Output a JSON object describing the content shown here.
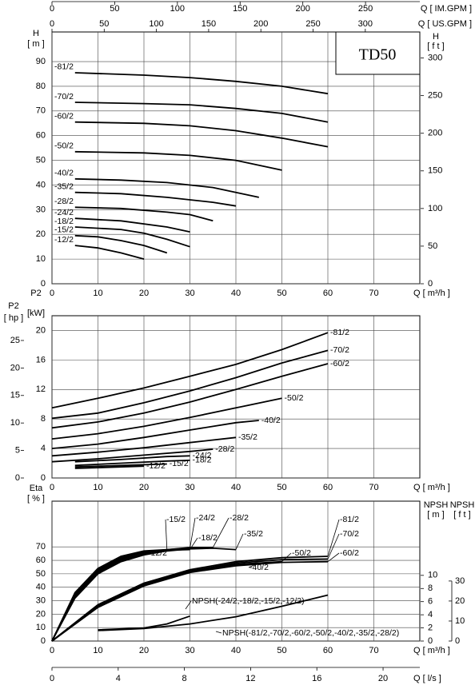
{
  "chart_data": [
    {
      "type": "line",
      "title": "TD50",
      "xlabel": "Q [ m³/h ]",
      "ylabel": "H",
      "yunit": "[ m ]",
      "y2label": "H",
      "y2unit": "[ f t ]",
      "xlim": [
        0,
        80
      ],
      "xticks": [
        0,
        10,
        20,
        30,
        40,
        50,
        60,
        70
      ],
      "ylim": [
        0,
        102
      ],
      "yticks": [
        0,
        10,
        20,
        30,
        40,
        50,
        60,
        70,
        80,
        90
      ],
      "y2lim": [
        0,
        334.6
      ],
      "y2ticks": [
        0,
        50,
        100,
        150,
        200,
        250,
        300
      ],
      "grid": true,
      "color": "#000000",
      "top_axes": [
        {
          "label": "Q [ IM.GPM ]",
          "lim": [
            0,
            293.3
          ],
          "ticks": [
            0,
            50,
            100,
            150,
            200,
            250
          ]
        },
        {
          "label": "Q [ US.GPM ]",
          "lim": [
            0,
            352.2
          ],
          "ticks": [
            0,
            50,
            100,
            150,
            200,
            250,
            300
          ]
        }
      ],
      "series": [
        {
          "name": "-81/2",
          "x": [
            5,
            20,
            30,
            40,
            50,
            60
          ],
          "values": [
            85.5,
            84.5,
            83.5,
            82,
            80,
            77
          ]
        },
        {
          "name": "-70/2",
          "x": [
            5,
            20,
            30,
            40,
            50,
            60
          ],
          "values": [
            73.5,
            73,
            72.5,
            71,
            69,
            65.5
          ]
        },
        {
          "name": "-60/2",
          "x": [
            5,
            20,
            30,
            40,
            50,
            60
          ],
          "values": [
            65.5,
            65,
            64,
            62,
            59,
            55.5
          ]
        },
        {
          "name": "-50/2",
          "x": [
            5,
            20,
            30,
            40,
            50
          ],
          "values": [
            53.5,
            53,
            52,
            50,
            46
          ]
        },
        {
          "name": "-40/2",
          "x": [
            5,
            15,
            25,
            35,
            45
          ],
          "values": [
            42.5,
            42,
            41,
            39,
            35
          ]
        },
        {
          "name": "-35/2",
          "x": [
            5,
            15,
            25,
            35,
            40
          ],
          "values": [
            37,
            36.5,
            35,
            33,
            31.5
          ]
        },
        {
          "name": "-28/2",
          "x": [
            5,
            15,
            25,
            30,
            35
          ],
          "values": [
            31,
            30.5,
            29,
            28,
            25.5
          ]
        },
        {
          "name": "-24/2",
          "x": [
            5,
            15,
            25,
            30
          ],
          "values": [
            26.5,
            25.5,
            23,
            21
          ]
        },
        {
          "name": "-18/2",
          "x": [
            5,
            15,
            20,
            25,
            30
          ],
          "values": [
            23,
            22,
            20.5,
            18,
            15
          ]
        },
        {
          "name": "-15/2",
          "x": [
            5,
            10,
            15,
            20,
            25
          ],
          "values": [
            19.5,
            19,
            17.5,
            15.5,
            12.5
          ]
        },
        {
          "name": "-12/2",
          "x": [
            5,
            10,
            15,
            20
          ],
          "values": [
            15.5,
            14.5,
            12.5,
            10
          ]
        }
      ]
    },
    {
      "type": "line",
      "xlabel": "Q [ m³/h ]",
      "ylabel": "P2",
      "yunit": "[kW]",
      "y2label": "P2",
      "y2unit": "[ hp ]",
      "xlim": [
        0,
        80
      ],
      "xticks": [
        0,
        10,
        20,
        30,
        40,
        50,
        60,
        70
      ],
      "ylim": [
        0,
        22
      ],
      "yticks": [
        0,
        4,
        8,
        12,
        16,
        20
      ],
      "y2lim": [
        0,
        29.5
      ],
      "y2ticks": [
        0,
        5,
        10,
        15,
        20,
        25
      ],
      "grid": true,
      "color": "#000000",
      "series": [
        {
          "name": "-81/2",
          "x": [
            0,
            10,
            20,
            30,
            40,
            50,
            60
          ],
          "values": [
            9.5,
            10.8,
            12.2,
            13.8,
            15.4,
            17.4,
            19.7
          ]
        },
        {
          "name": "-70/2",
          "x": [
            0,
            10,
            20,
            30,
            40,
            50,
            60
          ],
          "values": [
            8.1,
            8.8,
            10.2,
            11.8,
            13.6,
            15.6,
            17.3
          ]
        },
        {
          "name": "-60/2",
          "x": [
            0,
            10,
            20,
            30,
            40,
            50,
            60
          ],
          "values": [
            6.8,
            7.6,
            8.8,
            10.3,
            12,
            13.8,
            15.5
          ]
        },
        {
          "name": "-50/2",
          "x": [
            0,
            10,
            20,
            30,
            40,
            50
          ],
          "values": [
            5.3,
            6,
            7,
            8.2,
            9.5,
            10.8
          ]
        },
        {
          "name": "-40/2",
          "x": [
            0,
            10,
            20,
            30,
            40,
            45
          ],
          "values": [
            4,
            4.6,
            5.5,
            6.5,
            7.5,
            7.8
          ]
        },
        {
          "name": "-35/2",
          "x": [
            0,
            10,
            20,
            30,
            40
          ],
          "values": [
            3,
            3.5,
            4.1,
            4.8,
            5.5
          ]
        },
        {
          "name": "-28/2",
          "x": [
            0,
            10,
            20,
            30,
            35
          ],
          "values": [
            2.2,
            2.6,
            3.1,
            3.6,
            3.9
          ]
        },
        {
          "name": "-24/2",
          "x": [
            5,
            15,
            25,
            30
          ],
          "values": [
            2.2,
            2.5,
            2.9,
            3
          ]
        },
        {
          "name": "-18/2",
          "x": [
            5,
            15,
            25,
            30
          ],
          "values": [
            1.7,
            2,
            2.3,
            2.4
          ]
        },
        {
          "name": "-15/2",
          "x": [
            5,
            15,
            25
          ],
          "values": [
            1.5,
            1.7,
            1.9
          ]
        },
        {
          "name": "-12/2",
          "x": [
            5,
            10,
            20
          ],
          "values": [
            1.3,
            1.4,
            1.6
          ]
        }
      ]
    },
    {
      "type": "line",
      "xlabel": "Q [ m³/h ]",
      "ylabel": "Eta",
      "yunit": "[ % ]",
      "y2label": "NPSH",
      "y2unit": "[ m ]",
      "y3label": "NPSH",
      "y3unit": "[ f t ]",
      "xlim": [
        0,
        80
      ],
      "xticks": [
        0,
        10,
        20,
        30,
        40,
        50,
        60,
        70
      ],
      "ylim": [
        0,
        104
      ],
      "yticks": [
        0,
        10,
        20,
        30,
        40,
        50,
        60,
        70
      ],
      "y2lim": [
        0,
        21.3
      ],
      "y2ticks": [
        0,
        2,
        4,
        6,
        8,
        10
      ],
      "y3lim": [
        0,
        69.9
      ],
      "y3ticks": [
        0,
        10,
        20,
        30
      ],
      "grid": true,
      "color": "#000000",
      "bottom_axis": {
        "label": "Q [ l/s ]",
        "lim": [
          0,
          22.22
        ],
        "ticks": [
          0,
          4,
          8,
          12,
          16,
          20
        ]
      },
      "series": [
        {
          "name": "-12/2",
          "x": [
            0,
            5,
            10,
            15,
            20
          ],
          "values": [
            0,
            35,
            53,
            62,
            66
          ]
        },
        {
          "name": "-15/2",
          "x": [
            0,
            5,
            10,
            15,
            20,
            25
          ],
          "values": [
            0,
            36,
            54,
            63,
            67,
            68
          ]
        },
        {
          "name": "-18/2",
          "x": [
            0,
            5,
            10,
            15,
            20,
            25,
            30
          ],
          "values": [
            0,
            35,
            53,
            62,
            66,
            67.5,
            68
          ]
        },
        {
          "name": "-24/2",
          "x": [
            0,
            5,
            10,
            15,
            20,
            25,
            30
          ],
          "values": [
            0,
            34,
            52,
            61,
            66,
            68,
            69
          ]
        },
        {
          "name": "-28/2",
          "x": [
            0,
            5,
            10,
            15,
            20,
            25,
            30,
            35
          ],
          "values": [
            0,
            33,
            51,
            60,
            65,
            68,
            69.5,
            69.5
          ]
        },
        {
          "name": "-35/2",
          "x": [
            0,
            5,
            10,
            15,
            20,
            25,
            30,
            35,
            40
          ],
          "values": [
            0,
            32,
            50,
            59,
            64,
            67,
            68.5,
            69,
            68
          ]
        },
        {
          "name": "-40/2",
          "x": [
            0,
            10,
            20,
            30,
            40,
            45
          ],
          "values": [
            0,
            27,
            43,
            52,
            57,
            58
          ]
        },
        {
          "name": "-50/2",
          "x": [
            0,
            10,
            20,
            30,
            40,
            50
          ],
          "values": [
            0,
            26,
            42,
            52,
            57,
            59
          ]
        },
        {
          "name": "-60/2",
          "x": [
            0,
            10,
            20,
            30,
            40,
            50,
            60
          ],
          "values": [
            0,
            25,
            41,
            51,
            56,
            58.5,
            59
          ]
        },
        {
          "name": "-70/2",
          "x": [
            0,
            10,
            20,
            30,
            40,
            50,
            60
          ],
          "values": [
            0,
            26,
            42,
            52,
            58,
            60.5,
            61
          ]
        },
        {
          "name": "-81/2",
          "x": [
            0,
            10,
            20,
            30,
            40,
            50,
            60
          ],
          "values": [
            0,
            27,
            43,
            53,
            59,
            62,
            63
          ]
        },
        {
          "name": "NPSH(-24/2,-18/2,-15/2,-12/2)",
          "axis": "y2",
          "x": [
            10,
            20,
            25,
            30
          ],
          "values": [
            1.7,
            2,
            2.6,
            3.8
          ]
        },
        {
          "name": "NPSH(-81/2,-70/2,-60/2,-50/2,-40/2,-35/2,-28/2)",
          "axis": "y2",
          "x": [
            10,
            20,
            30,
            40,
            50,
            60
          ],
          "values": [
            1.6,
            1.9,
            2.6,
            3.7,
            5.3,
            7
          ]
        }
      ]
    }
  ]
}
